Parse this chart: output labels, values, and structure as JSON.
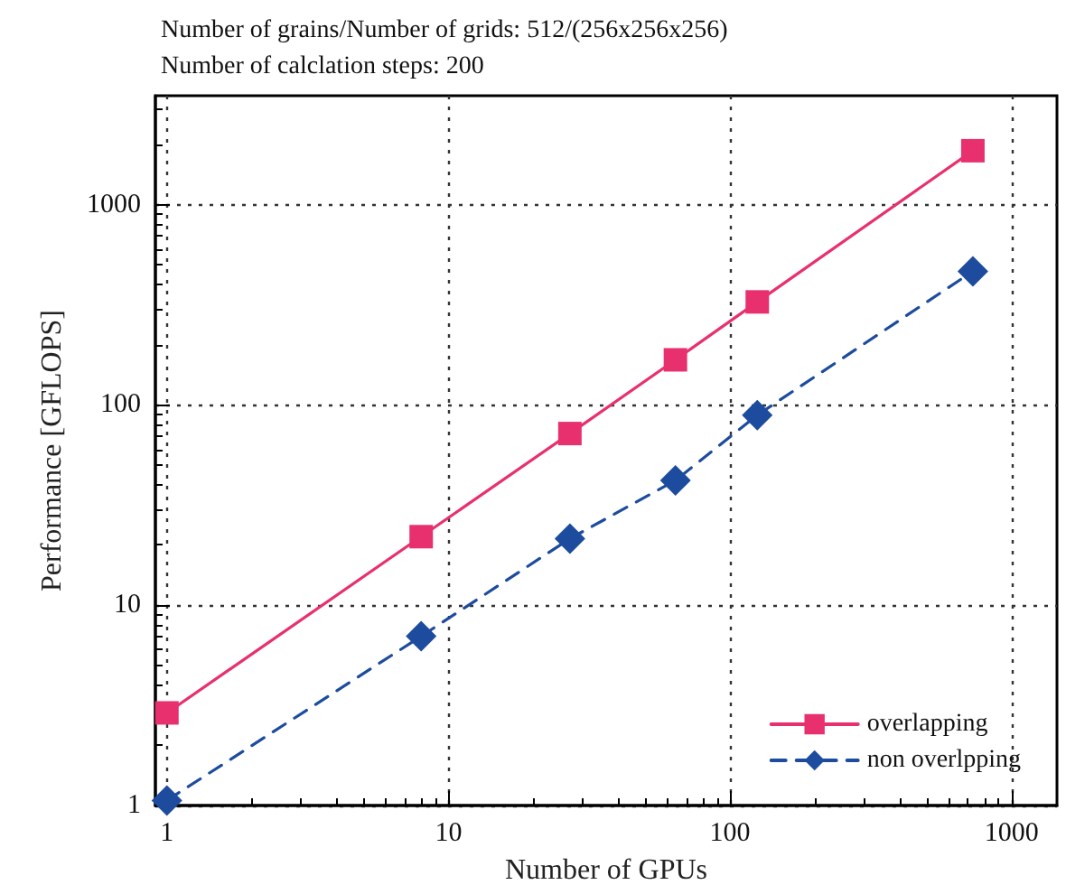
{
  "chart_data": {
    "type": "line",
    "title": "Number of grains/Number of grids: 512/(256x256x256)",
    "subtitle": "Number of calclation steps: 200",
    "xlabel": "Number of GPUs",
    "ylabel": "Performance [GFLOPS]",
    "x": [
      1,
      8,
      27,
      64,
      125,
      729
    ],
    "series": [
      {
        "name": "overlapping",
        "color": "#e8306f",
        "marker": "square",
        "line_style": "solid",
        "values": [
          2.9,
          22,
          72,
          168,
          327,
          1860
        ]
      },
      {
        "name": "non overlpping",
        "color": "#1d4c9e",
        "marker": "diamond",
        "line_style": "dashed",
        "values": [
          1.06,
          7.0,
          21.5,
          42,
          89,
          465
        ]
      }
    ],
    "log": "xy",
    "xlim": [
      0.91,
      1450
    ],
    "ylim": [
      1,
      3500
    ],
    "xticks": [
      1,
      10,
      100,
      1000
    ],
    "yticks": [
      1,
      10,
      100,
      1000
    ],
    "grid": true,
    "legend": "bottom right"
  }
}
